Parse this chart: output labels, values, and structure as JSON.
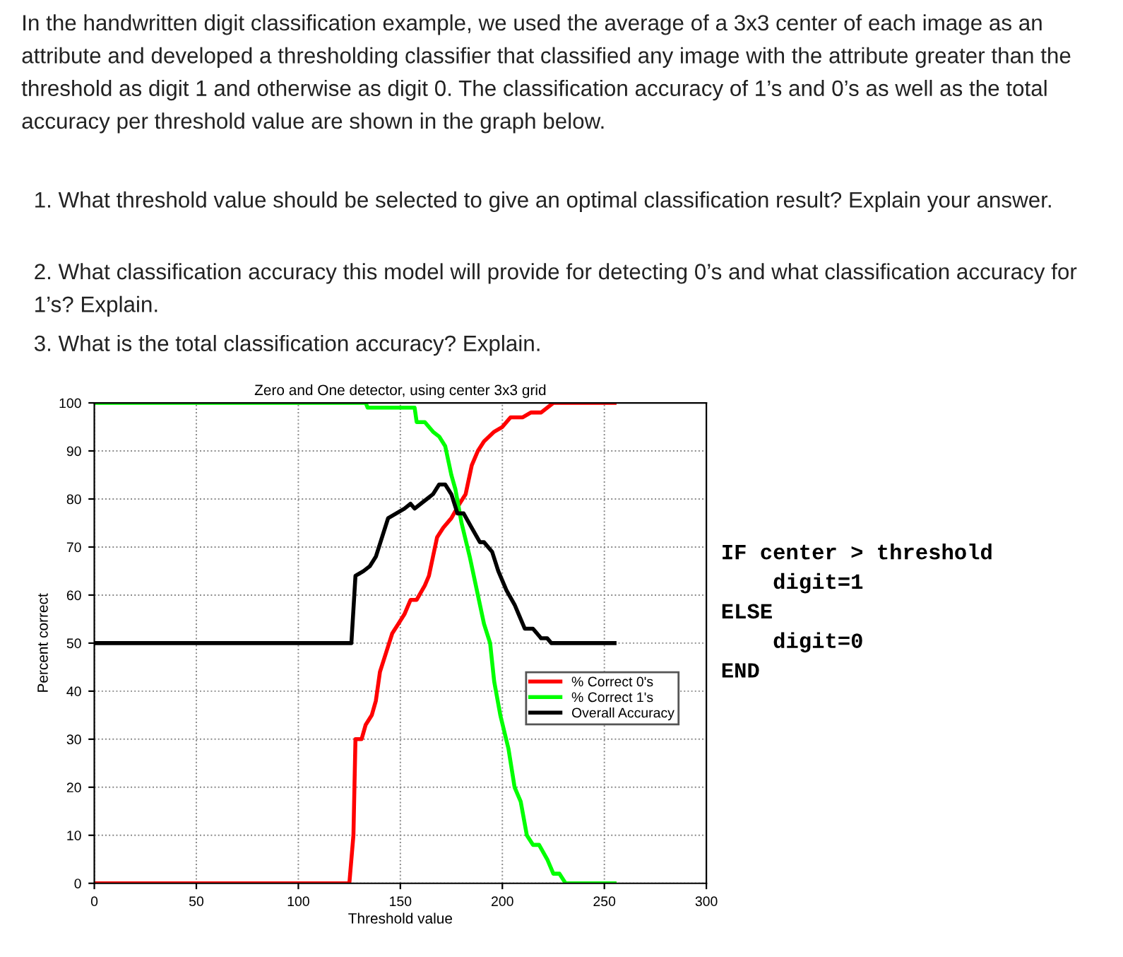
{
  "chart_data": {
    "type": "line",
    "title": "Zero and One detector, using center 3x3 grid",
    "xlabel": "Threshold value",
    "ylabel": "Percent correct",
    "annotations": [
      "In the handwritten digit classification example, we used the average of a 3x3 center of each image as an attribute and developed a thresholding classifier that classified any image with the attribute greater than the threshold as digit 1 and otherwise as digit 0. The classification accuracy of 1’s and 0’s as well as the total accuracy per threshold value are shown in the graph below.",
      "1. What threshold value should be selected to give an optimal classification result? Explain your answer.",
      "2. What classification accuracy this model will provide for detecting 0’s and what classification accuracy for 1’s? Explain.",
      "3. What is the total classification accuracy? Explain.",
      "IF center > threshold\n    digit=1\nELSE\n    digit=0\nEND"
    ],
    "series": [
      {
        "name": "% Correct 0's",
        "color": "#ff0000",
        "x": [
          0,
          125,
          127,
          128,
          131,
          133,
          136,
          138,
          140,
          143,
          146,
          149,
          152,
          155,
          158,
          162,
          164,
          166,
          168,
          171,
          175,
          179,
          182,
          185,
          188,
          191,
          196,
          200,
          204,
          210,
          214,
          219,
          225,
          255
        ],
        "values": [
          0,
          0,
          10,
          30,
          30,
          33,
          35,
          38,
          44,
          48,
          52,
          54,
          56,
          59,
          59,
          62,
          64,
          68,
          72,
          74,
          76,
          79,
          81,
          87,
          90,
          92,
          94,
          95,
          97,
          97,
          98,
          98,
          100,
          100
        ]
      },
      {
        "name": "% Correct 1's",
        "color": "#00ff00",
        "x": [
          0,
          133,
          134,
          157,
          158,
          162,
          166,
          169,
          172,
          175,
          177,
          180,
          184,
          188,
          191,
          194,
          196,
          199,
          203,
          206,
          209,
          212,
          215,
          218,
          222,
          225,
          228,
          231,
          255
        ],
        "values": [
          100,
          100,
          99,
          99,
          96,
          96,
          94,
          93,
          91,
          85,
          82,
          75,
          68,
          60,
          54,
          50,
          42,
          35,
          28,
          20,
          17,
          10,
          8,
          8,
          5,
          2,
          2,
          0,
          0
        ]
      },
      {
        "name": "Overall Accuracy",
        "color": "#000000",
        "x": [
          0,
          126,
          128,
          132,
          135,
          138,
          141,
          144,
          148,
          152,
          155,
          157,
          160,
          163,
          166,
          169,
          172,
          175,
          178,
          181,
          185,
          189,
          191,
          195,
          198,
          202,
          206,
          208,
          211,
          215,
          219,
          222,
          224,
          255
        ],
        "values": [
          50,
          50,
          64,
          65,
          66,
          68,
          72,
          76,
          77,
          78,
          79,
          78,
          79,
          80,
          81,
          83,
          83,
          81,
          77,
          77,
          74,
          71,
          71,
          69,
          65,
          61,
          58,
          56,
          53,
          53,
          51,
          51,
          50,
          50
        ]
      }
    ],
    "xlim": [
      0,
      300
    ],
    "xticks": [
      0,
      50,
      100,
      150,
      200,
      250,
      300
    ],
    "ylim": [
      0,
      100
    ],
    "yticks": [
      0,
      10,
      20,
      30,
      40,
      50,
      60,
      70,
      80,
      90,
      100
    ],
    "grid": true,
    "legend": "center right",
    "line_style": "solid"
  }
}
